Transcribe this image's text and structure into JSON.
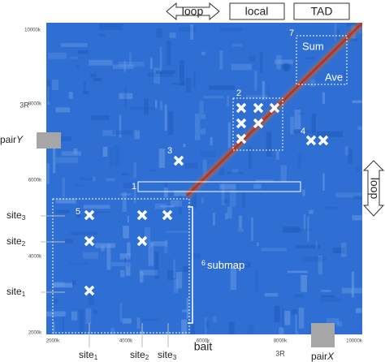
{
  "header": {
    "loop": "loop",
    "local": "local",
    "tad": "TAD"
  },
  "side": {
    "loop": "loop"
  },
  "y_axis": {
    "ticks": [
      "10000k",
      "8000k",
      "6000k",
      "4000k",
      "2000k"
    ],
    "chrom": "3R"
  },
  "x_axis": {
    "ticks": [
      "2000k",
      "4000k",
      "6000k",
      "8000k",
      "10000k"
    ],
    "chrom": "3R"
  },
  "pair_y": {
    "base": "pair",
    "var": "Y"
  },
  "pair_x": {
    "base": "pair",
    "var": "X"
  },
  "left_sites": [
    {
      "base": "site",
      "sub": "3"
    },
    {
      "base": "site",
      "sub": "2"
    },
    {
      "base": "site",
      "sub": "1"
    }
  ],
  "bottom_sites": [
    {
      "base": "site",
      "sub": "1"
    },
    {
      "base": "site",
      "sub": "2"
    },
    {
      "base": "site",
      "sub": "3"
    }
  ],
  "bait": "bait",
  "submap": {
    "number": "6",
    "label": "submap"
  },
  "regions": [
    "1",
    "2",
    "3",
    "4",
    "5",
    "7"
  ],
  "tad_box": {
    "sum": "Sum",
    "ave": "Ave"
  }
}
